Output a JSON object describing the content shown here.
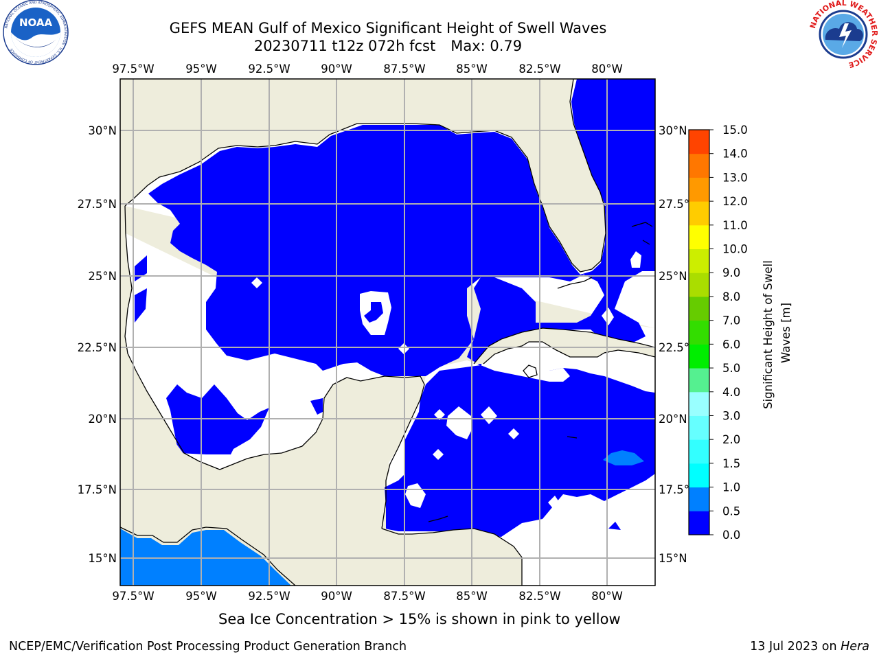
{
  "header": {
    "title_line1": "GEFS MEAN Gulf of Mexico Significant Height of Swell Waves",
    "date_label": "20230711 t12z 072h fcst",
    "max_label": "Max: 0.79"
  },
  "logos": {
    "left_logo_text": "NOAA",
    "left_logo_ring": "NATIONAL OCEANIC AND ATMOSPHERIC ADMINISTRATION · U.S. DEPARTMENT OF COMMERCE",
    "right_logo_ring": "NATIONAL WEATHER SERVICE"
  },
  "map": {
    "lon_ticks": [
      "97.5°W",
      "95°W",
      "92.5°W",
      "90°W",
      "87.5°W",
      "85°W",
      "82.5°W",
      "80°W"
    ],
    "lat_ticks_left": [
      "30°N",
      "27.5°N",
      "25°N",
      "22.5°N",
      "20°N",
      "17.5°N",
      "15°N"
    ],
    "lat_ticks_right": [
      "30°N",
      "27.5°N",
      "25°N",
      "22.5°N",
      "20°N",
      "17.5°N",
      "15°N"
    ],
    "colors": {
      "land": "#eeeddc",
      "ocean_low": "#0000ff",
      "ocean_mid": "#0080ff",
      "no_data": "#ffffff",
      "grid": "#b0b0b0",
      "coast": "#000000"
    }
  },
  "colorbar": {
    "label_line1": "Significant Height of Swell",
    "label_line2": "Waves [m]",
    "levels": [
      "0.0",
      "0.5",
      "1.0",
      "1.5",
      "2.0",
      "3.0",
      "4.0",
      "5.0",
      "6.0",
      "7.0",
      "8.0",
      "9.0",
      "10.0",
      "11.0",
      "12.0",
      "13.0",
      "14.0",
      "15.0"
    ],
    "colors": [
      "#0000ff",
      "#0080ff",
      "#00ffff",
      "#33ffff",
      "#66ffff",
      "#99ffff",
      "#55f090",
      "#00ee00",
      "#33dd00",
      "#66cc00",
      "#aadd00",
      "#ccee00",
      "#ffff00",
      "#ffcc00",
      "#ff9900",
      "#ff7700",
      "#ff4400",
      "#ff0000"
    ]
  },
  "caption": "Sea Ice Concentration > 15% is shown in pink to yellow",
  "footer": {
    "left": "NCEP/EMC/Verification Post Processing Product Generation Branch",
    "right_date": "13 Jul 2023 on ",
    "right_host": "Hera"
  }
}
